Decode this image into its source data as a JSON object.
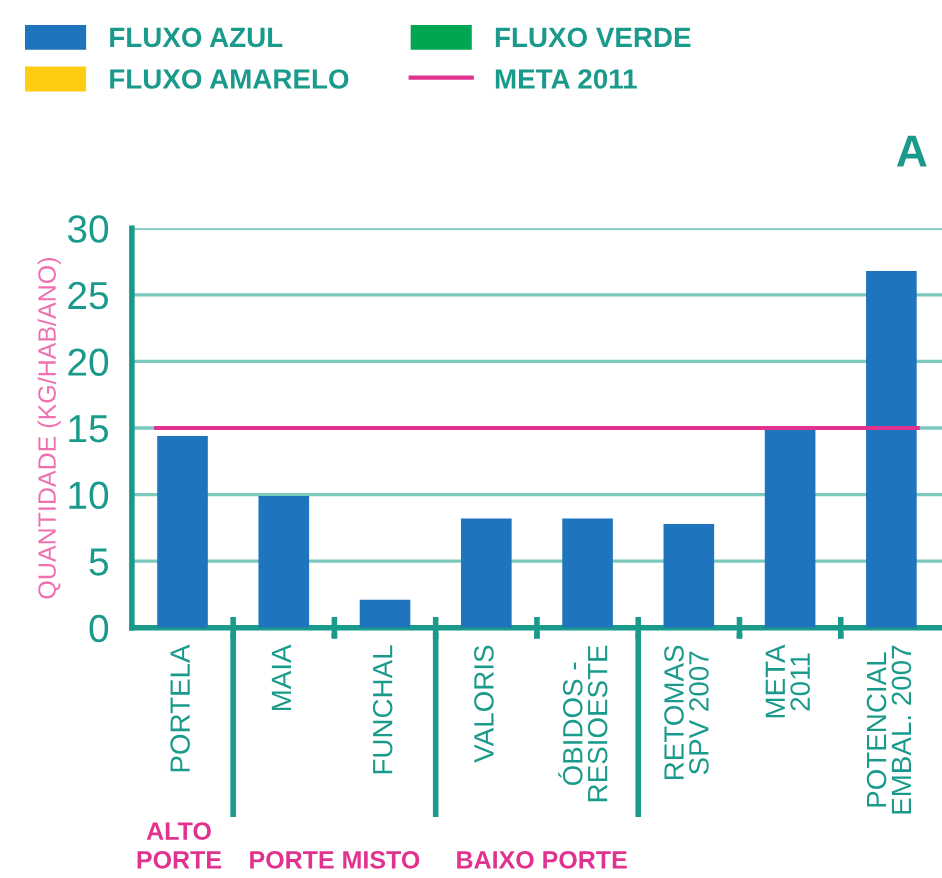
{
  "chart_data": {
    "type": "bar",
    "categories": [
      "PORTELA",
      "MAIA",
      "FUNCHAL",
      "VALORIS",
      "ÓBIDOS -\nRESIOESTE",
      "RETOMAS\nSPV 2007",
      "META\n2011",
      "POTENCIAL\nEMBAL. 2007"
    ],
    "series": [
      {
        "name": "FLUXO AZUL",
        "color": "#1f75bd",
        "values": [
          14.4,
          9.9,
          2.1,
          8.2,
          8.2,
          7.8,
          15.0,
          26.8
        ]
      },
      {
        "name": "FLUXO AMARELO",
        "color": "#ffcc0f",
        "values": [
          null,
          null,
          null,
          null,
          null,
          null,
          null,
          null
        ]
      },
      {
        "name": "FLUXO VERDE",
        "color": "#00a651",
        "values": [
          null,
          null,
          null,
          null,
          null,
          null,
          null,
          null
        ]
      }
    ],
    "ylabel": "QUANTIDADE (KG/HAB/ANO)",
    "ylim": [
      0,
      30
    ],
    "yticks": [
      0,
      5,
      10,
      15,
      20,
      25,
      30
    ],
    "grid": "y",
    "legend": "top left",
    "ref_lines": [
      {
        "axis": "y",
        "value": 15,
        "label": "META 2011",
        "color": "#e0338f"
      }
    ],
    "annotations": [
      "A",
      "ALTO\nPORTE",
      "PORTE MISTO",
      "BAIXO PORTE"
    ]
  }
}
